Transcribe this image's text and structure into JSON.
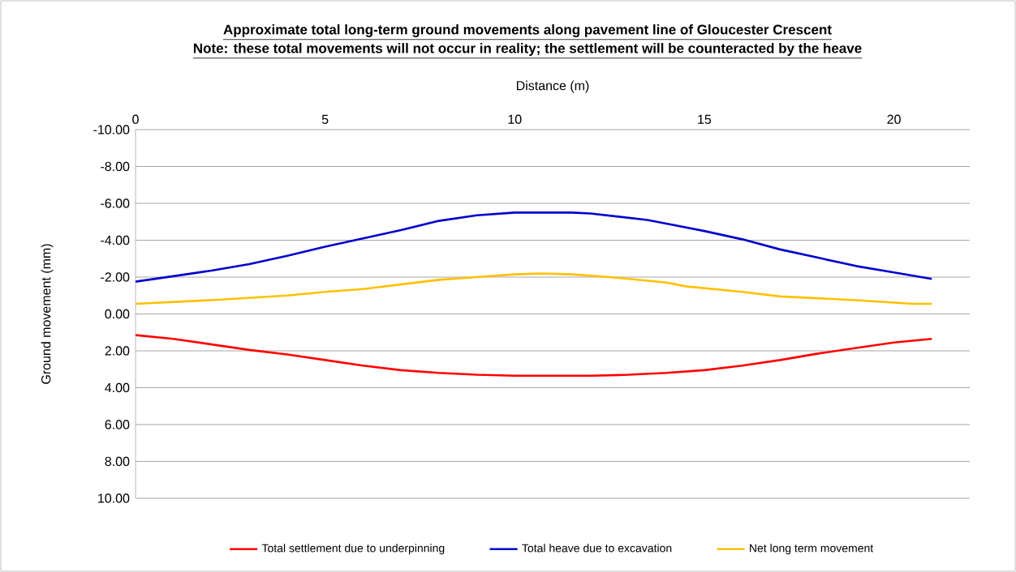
{
  "chart_data": {
    "type": "line",
    "title": "Approximate total long-term ground movements along pavement line of Gloucester Crescent",
    "subtitle": "Note: these total movements will not occur in reality; the settlement will be counteracted by the heave",
    "xlabel": "Distance (m)",
    "ylabel": "Ground movement (mm)",
    "xlim": [
      0,
      22
    ],
    "xticks": [
      0,
      5,
      10,
      15,
      20
    ],
    "ylim": [
      10,
      -10
    ],
    "yticks": [
      {
        "value": -10,
        "label": "-10.00"
      },
      {
        "value": -8,
        "label": "-8.00"
      },
      {
        "value": -6,
        "label": "-6.00"
      },
      {
        "value": -4,
        "label": "-4.00"
      },
      {
        "value": -2,
        "label": "-2.00"
      },
      {
        "value": 0,
        "label": "0.00"
      },
      {
        "value": 2,
        "label": "2.00"
      },
      {
        "value": 4,
        "label": "4.00"
      },
      {
        "value": 6,
        "label": "6.00"
      },
      {
        "value": 8,
        "label": "8.00"
      },
      {
        "value": 10,
        "label": "10.00"
      }
    ],
    "grid": "y",
    "legend": "bottom",
    "marker": "none",
    "line_style": "solid",
    "series": [
      {
        "name": "Total settlement due to underpinning",
        "color": "#ff0000",
        "x": [
          0,
          1,
          2,
          3,
          4,
          5,
          6,
          7,
          8,
          9,
          10,
          11,
          12,
          13,
          14,
          15,
          16,
          17,
          18,
          19,
          20,
          21
        ],
        "values": [
          1.15,
          1.35,
          1.65,
          1.95,
          2.2,
          2.5,
          2.8,
          3.05,
          3.2,
          3.3,
          3.35,
          3.35,
          3.35,
          3.3,
          3.2,
          3.05,
          2.8,
          2.5,
          2.15,
          1.85,
          1.55,
          1.35
        ]
      },
      {
        "name": "Total heave due to excavation",
        "color": "#0000cc",
        "x": [
          0,
          1,
          2,
          3,
          4,
          5,
          6,
          7,
          8,
          9,
          10,
          11,
          11.5,
          12,
          13.5,
          14,
          15,
          16,
          17,
          18,
          19,
          20,
          21
        ],
        "values": [
          -1.75,
          -2.05,
          -2.35,
          -2.7,
          -3.15,
          -3.65,
          -4.1,
          -4.55,
          -5.05,
          -5.35,
          -5.5,
          -5.5,
          -5.5,
          -5.45,
          -5.1,
          -4.9,
          -4.5,
          -4.05,
          -3.5,
          -3.05,
          -2.6,
          -2.25,
          -1.9
        ]
      },
      {
        "name": "Net long term movement",
        "color": "#ffc000",
        "x": [
          0,
          2,
          4,
          5,
          6,
          7,
          8,
          9,
          10,
          10.7,
          11.5,
          12.5,
          14,
          14.5,
          16,
          17,
          19,
          20.5,
          21
        ],
        "values": [
          -0.55,
          -0.75,
          -1.0,
          -1.2,
          -1.35,
          -1.6,
          -1.85,
          -2.0,
          -2.15,
          -2.2,
          -2.15,
          -2.0,
          -1.7,
          -1.5,
          -1.2,
          -0.95,
          -0.75,
          -0.55,
          -0.55
        ]
      }
    ]
  }
}
